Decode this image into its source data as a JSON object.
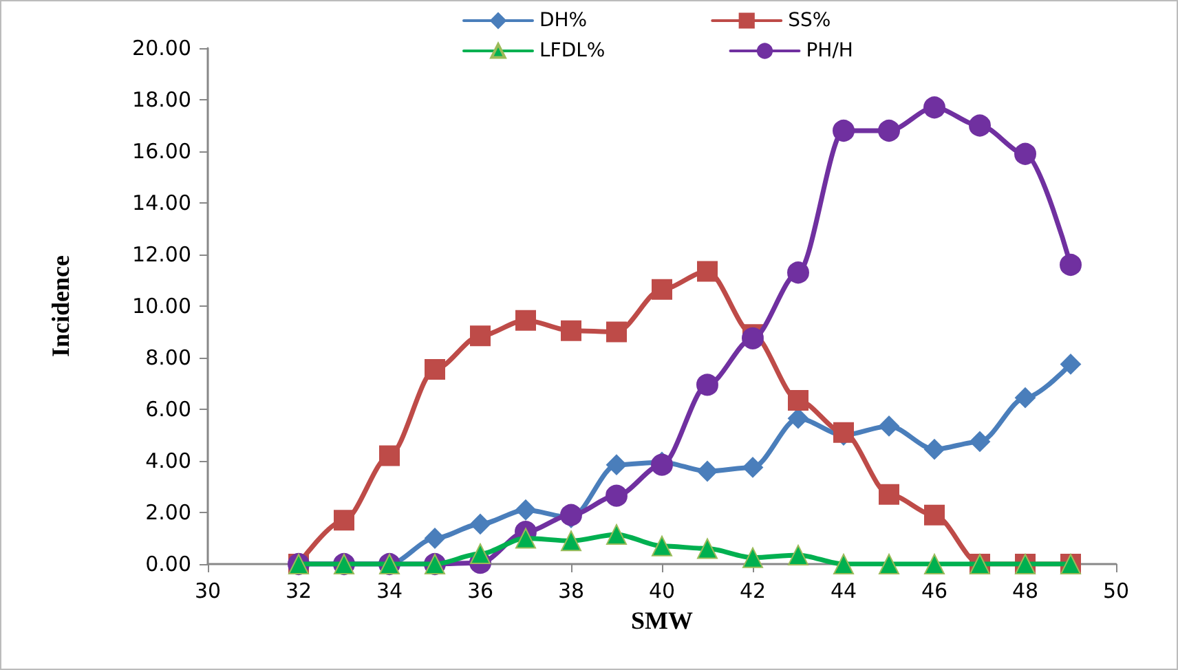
{
  "chart_data": {
    "type": "line",
    "xlabel": "SMW",
    "ylabel": "Incidence",
    "x": [
      32,
      33,
      34,
      35,
      36,
      37,
      38,
      39,
      40,
      41,
      42,
      43,
      44,
      45,
      46,
      47,
      48,
      49
    ],
    "xlim": [
      30,
      50
    ],
    "xticks": [
      30,
      32,
      34,
      36,
      38,
      40,
      42,
      44,
      46,
      48,
      50
    ],
    "ylim": [
      0,
      20
    ],
    "yticks": [
      {
        "value": 0,
        "label": "0.00"
      },
      {
        "value": 2,
        "label": "2.00"
      },
      {
        "value": 4,
        "label": "4.00"
      },
      {
        "value": 6,
        "label": "6.00"
      },
      {
        "value": 8,
        "label": "8.00"
      },
      {
        "value": 10,
        "label": "10.00"
      },
      {
        "value": 12,
        "label": "12.00"
      },
      {
        "value": 14,
        "label": "14.00"
      },
      {
        "value": 16,
        "label": "16.00"
      },
      {
        "value": 18,
        "label": "18.00"
      },
      {
        "value": 20,
        "label": "20.00"
      }
    ],
    "grid": false,
    "legend": "top",
    "line_style": "solid",
    "series": [
      {
        "name": "DH%",
        "color": "#4a7ebb",
        "marker": "diamond",
        "values": [
          0,
          0,
          0,
          1.0,
          1.55,
          2.1,
          1.8,
          3.85,
          3.95,
          3.6,
          3.75,
          5.65,
          5.0,
          5.35,
          4.45,
          4.75,
          6.45,
          7.75
        ]
      },
      {
        "name": "SS%",
        "color": "#be4b48",
        "marker": "square",
        "values": [
          0,
          1.7,
          4.2,
          7.55,
          8.85,
          9.45,
          9.05,
          9.0,
          10.65,
          11.35,
          8.9,
          6.35,
          5.1,
          2.7,
          1.9,
          0,
          0,
          0
        ]
      },
      {
        "name": "LFDL%",
        "color": "#00b050",
        "marker": "triangle",
        "values": [
          0,
          0,
          0,
          0,
          0.4,
          1.0,
          0.9,
          1.15,
          0.7,
          0.6,
          0.25,
          0.35,
          0,
          0,
          0,
          0,
          0,
          0
        ]
      },
      {
        "name": "PH/H",
        "color": "#7030a0",
        "marker": "circle",
        "values": [
          0,
          0,
          0,
          0,
          0.05,
          1.25,
          1.9,
          2.65,
          3.85,
          6.95,
          8.75,
          11.3,
          16.8,
          16.8,
          17.7,
          17.0,
          15.9,
          11.6
        ]
      }
    ]
  }
}
